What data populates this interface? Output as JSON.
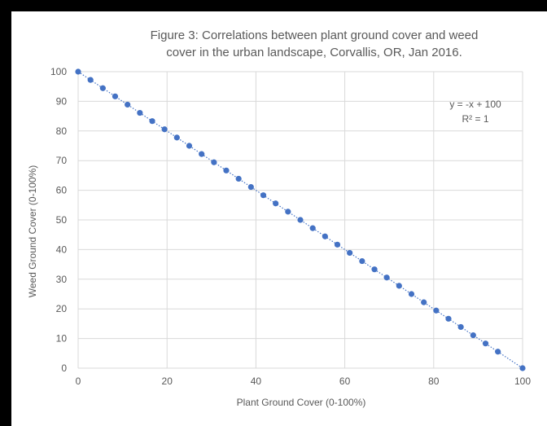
{
  "chart_data": {
    "type": "scatter",
    "title_lines": [
      "Figure 3: Correlations between plant ground cover and weed",
      "cover in the urban landscape, Corvallis, OR, Jan 2016."
    ],
    "xlabel": "Plant Ground Cover (0-100%)",
    "ylabel": "Weed Ground Cover (0-100%)",
    "xlim": [
      0,
      100
    ],
    "ylim": [
      0,
      100
    ],
    "x_ticks": [
      "0",
      "20",
      "40",
      "60",
      "80",
      "100"
    ],
    "y_ticks": [
      "0",
      "10",
      "20",
      "30",
      "40",
      "50",
      "60",
      "70",
      "80",
      "90",
      "100"
    ],
    "grid": true,
    "trendline": {
      "type": "linear",
      "style": "dotted"
    },
    "annotations": {
      "equation": "y = -x + 100",
      "r_squared": "R² = 1"
    },
    "colors": {
      "points": "#4472c4",
      "trendline": "#4472c4",
      "grid": "#d9d9d9",
      "text": "#595959"
    },
    "points": [
      {
        "x": 0,
        "y": 100
      },
      {
        "x": 2.78,
        "y": 97.22
      },
      {
        "x": 5.56,
        "y": 94.44
      },
      {
        "x": 8.33,
        "y": 91.67
      },
      {
        "x": 11.11,
        "y": 88.89
      },
      {
        "x": 13.89,
        "y": 86.11
      },
      {
        "x": 16.67,
        "y": 83.33
      },
      {
        "x": 19.44,
        "y": 80.56
      },
      {
        "x": 22.22,
        "y": 77.78
      },
      {
        "x": 25,
        "y": 75
      },
      {
        "x": 27.78,
        "y": 72.22
      },
      {
        "x": 30.56,
        "y": 69.44
      },
      {
        "x": 33.33,
        "y": 66.67
      },
      {
        "x": 36.11,
        "y": 63.89
      },
      {
        "x": 38.89,
        "y": 61.11
      },
      {
        "x": 41.67,
        "y": 58.33
      },
      {
        "x": 44.44,
        "y": 55.56
      },
      {
        "x": 47.22,
        "y": 52.78
      },
      {
        "x": 50,
        "y": 50
      },
      {
        "x": 52.78,
        "y": 47.22
      },
      {
        "x": 55.56,
        "y": 44.44
      },
      {
        "x": 58.33,
        "y": 41.67
      },
      {
        "x": 61.11,
        "y": 38.89
      },
      {
        "x": 63.89,
        "y": 36.11
      },
      {
        "x": 66.67,
        "y": 33.33
      },
      {
        "x": 69.44,
        "y": 30.56
      },
      {
        "x": 72.22,
        "y": 27.78
      },
      {
        "x": 75,
        "y": 25
      },
      {
        "x": 77.78,
        "y": 22.22
      },
      {
        "x": 80.56,
        "y": 19.44
      },
      {
        "x": 83.33,
        "y": 16.67
      },
      {
        "x": 86.11,
        "y": 13.89
      },
      {
        "x": 88.89,
        "y": 11.11
      },
      {
        "x": 91.67,
        "y": 8.33
      },
      {
        "x": 94.44,
        "y": 5.56
      },
      {
        "x": 100,
        "y": 0
      }
    ]
  }
}
